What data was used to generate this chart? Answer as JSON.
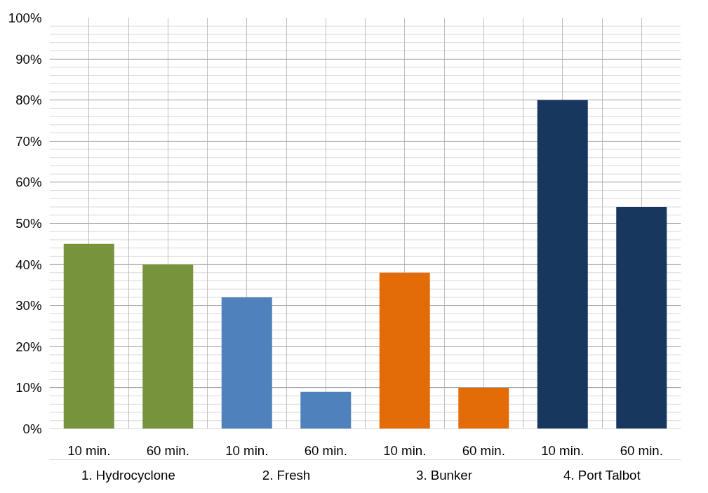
{
  "chart_data": {
    "type": "bar",
    "categories": [
      "10 min.",
      "60 min.",
      "10 min.",
      "60 min.",
      "10 min.",
      "60 min.",
      "10 min.",
      "60 min."
    ],
    "values": [
      0.45,
      0.4,
      0.32,
      0.09,
      0.38,
      0.1,
      0.8,
      0.54
    ],
    "colors": [
      "#77933c",
      "#77933c",
      "#4f81bd",
      "#4f81bd",
      "#e36c09",
      "#e36c09",
      "#17375e",
      "#17375e"
    ],
    "annotations": [
      "1. Hydrocyclone",
      "2. Fresh",
      "3. Bunker",
      "4. Port Talbot"
    ],
    "ylim": [
      0,
      1
    ],
    "yticks": [
      {
        "value": 0,
        "label": "0%"
      },
      {
        "value": 0.1,
        "label": "10%"
      },
      {
        "value": 0.2,
        "label": "20%"
      },
      {
        "value": 0.3,
        "label": "30%"
      },
      {
        "value": 0.4,
        "label": "40%"
      },
      {
        "value": 0.5,
        "label": "50%"
      },
      {
        "value": 0.6,
        "label": "60%"
      },
      {
        "value": 0.7,
        "label": "70%"
      },
      {
        "value": 0.8,
        "label": "80%"
      },
      {
        "value": 0.9,
        "label": "90%"
      },
      {
        "value": 1,
        "label": "100%"
      }
    ],
    "grid": true
  }
}
